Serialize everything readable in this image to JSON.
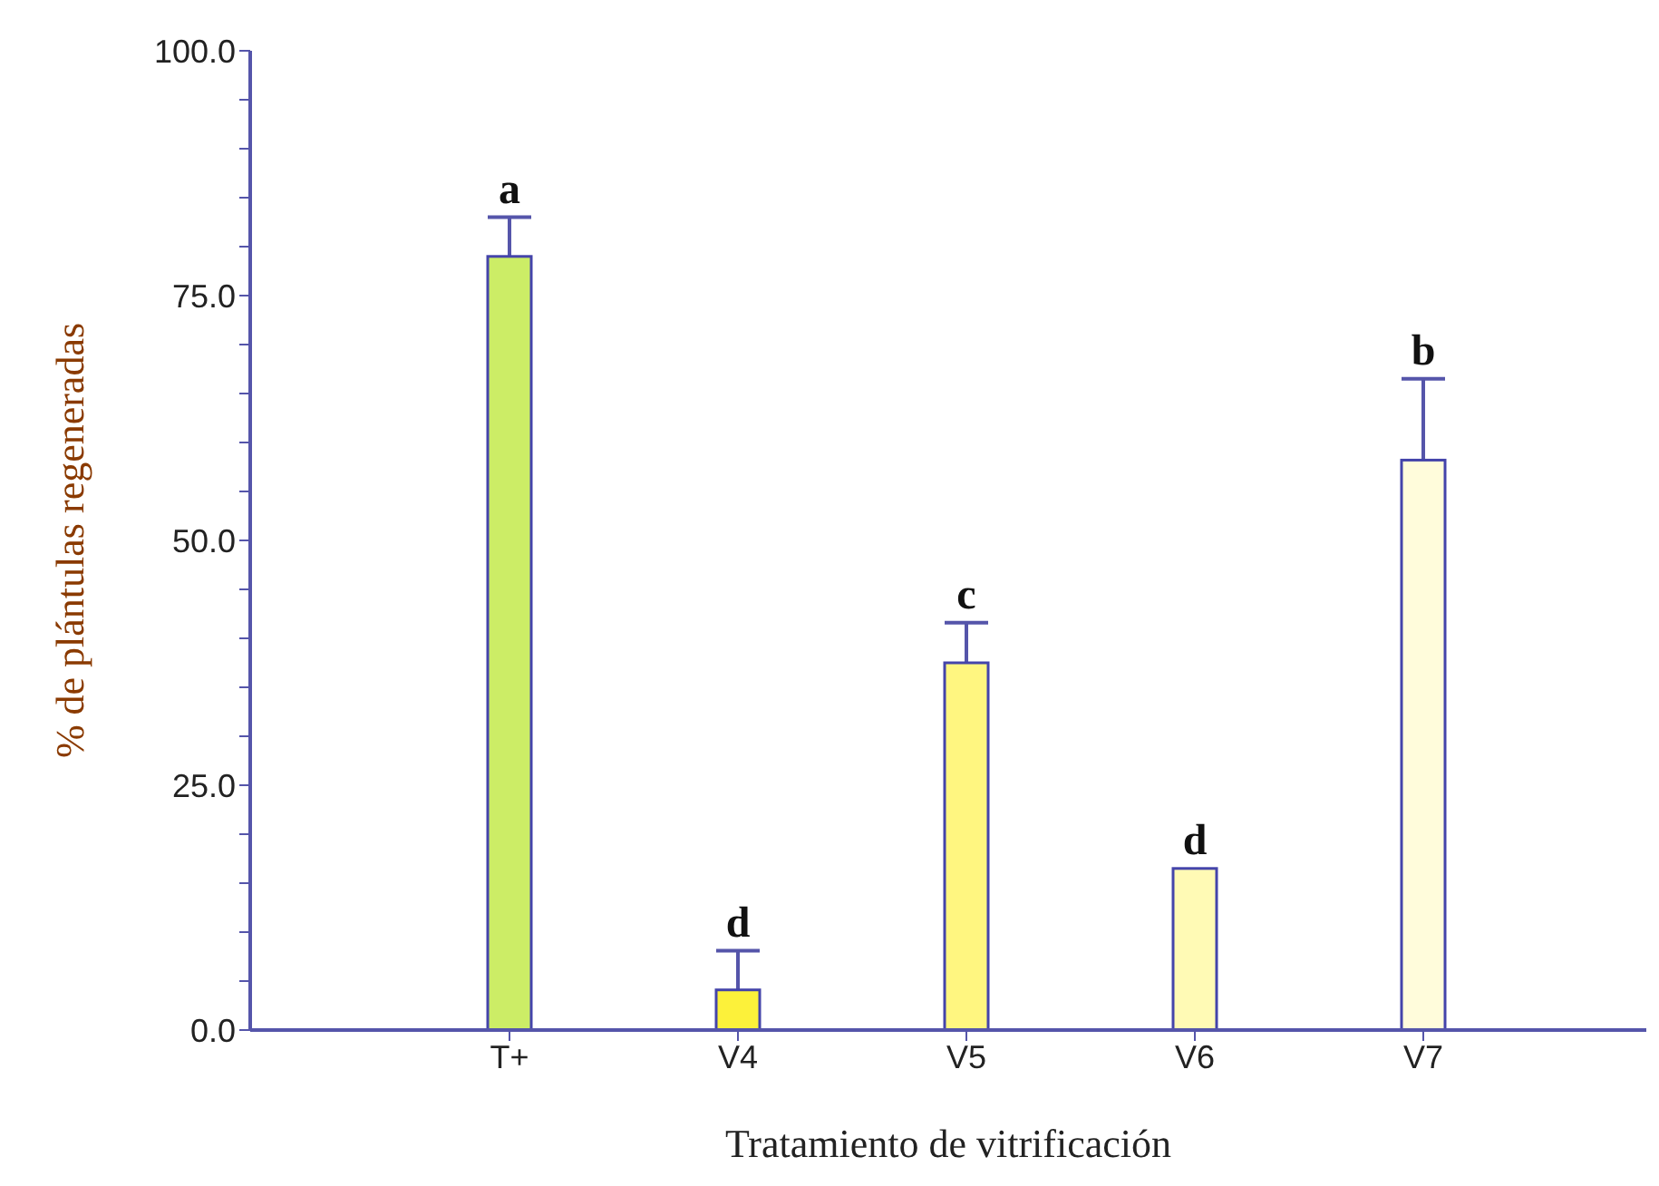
{
  "chart_data": {
    "type": "bar",
    "xlabel": "Tratamiento de vitrificación",
    "ylabel": "% de plántulas regeneradas",
    "categories": [
      "T+",
      "V4",
      "V5",
      "V6",
      "V7"
    ],
    "values": [
      79,
      4.1,
      37.5,
      16.5,
      58.2
    ],
    "colors": [
      "#cced66",
      "#fcf13a",
      "#fff680",
      "#fffab5",
      "#fffcdb"
    ],
    "errors": [
      [
        79,
        83
      ],
      [
        4.1,
        8.1
      ],
      [
        37.5,
        41.6
      ],
      null,
      [
        58.2,
        66.5
      ]
    ],
    "ylim": [
      0,
      100
    ],
    "yticks": [
      {
        "value": 0,
        "label": "0.0"
      },
      {
        "value": 5,
        "label": null
      },
      {
        "value": 10,
        "label": null
      },
      {
        "value": 15,
        "label": null
      },
      {
        "value": 20,
        "label": null
      },
      {
        "value": 25,
        "label": "25.0"
      },
      {
        "value": 30,
        "label": null
      },
      {
        "value": 35,
        "label": null
      },
      {
        "value": 40,
        "label": null
      },
      {
        "value": 45,
        "label": null
      },
      {
        "value": 50,
        "label": "50.0"
      },
      {
        "value": 55,
        "label": null
      },
      {
        "value": 60,
        "label": null
      },
      {
        "value": 65,
        "label": null
      },
      {
        "value": 70,
        "label": null
      },
      {
        "value": 75,
        "label": "75.0"
      },
      {
        "value": 80,
        "label": null
      },
      {
        "value": 85,
        "label": null
      },
      {
        "value": 90,
        "label": null
      },
      {
        "value": 95,
        "label": null
      },
      {
        "value": 100,
        "label": "100.0"
      }
    ],
    "annotations": [
      {
        "text": "a",
        "x": "T+",
        "y": 83
      },
      {
        "text": "d",
        "x": "V4",
        "y": 8.1
      },
      {
        "text": "c",
        "x": "V5",
        "y": 41.6
      },
      {
        "text": "d",
        "x": "V6",
        "y": 16.5
      },
      {
        "text": "b",
        "x": "V7",
        "y": 66.5
      }
    ]
  }
}
